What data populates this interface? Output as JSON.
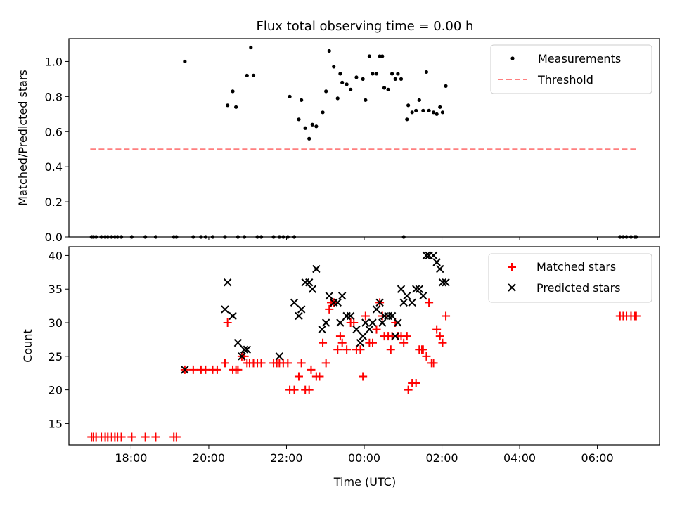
{
  "title": "Flux total observing time = 0.00 h",
  "chart_data": [
    {
      "type": "scatter",
      "ylabel": "Matched/Predicted stars",
      "ylim": [
        0,
        1.13
      ],
      "yticks": [
        "0.0",
        "0.2",
        "0.4",
        "0.6",
        "0.8",
        "1.0"
      ],
      "ytick_values": [
        0,
        0.2,
        0.4,
        0.6,
        0.8,
        1.0
      ],
      "legend_position": "top-right",
      "threshold": {
        "name": "Threshold",
        "value": 0.5,
        "x_start": "16:57",
        "x_end": "07:00",
        "color": "#ff7f7f"
      },
      "series": [
        {
          "name": "Measurements",
          "color": "#000000",
          "x": [
            "16:59",
            "17:02",
            "17:06",
            "17:14",
            "17:20",
            "17:24",
            "17:30",
            "17:35",
            "17:39",
            "17:45",
            "18:01",
            "18:22",
            "18:38",
            "19:06",
            "19:10",
            "19:23",
            "19:36",
            "19:48",
            "19:55",
            "20:06",
            "20:25",
            "20:29",
            "20:37",
            "20:42",
            "20:45",
            "20:55",
            "20:59",
            "21:05",
            "21:09",
            "21:15",
            "21:21",
            "21:40",
            "21:49",
            "21:55",
            "22:02",
            "22:05",
            "22:12",
            "22:19",
            "22:23",
            "22:29",
            "22:35",
            "22:40",
            "22:46",
            "22:56",
            "23:01",
            "23:06",
            "23:13",
            "23:19",
            "23:23",
            "23:26",
            "23:33",
            "23:39",
            "23:48",
            "23:58",
            "00:02",
            "00:08",
            "00:13",
            "00:19",
            "00:24",
            "00:28",
            "00:31",
            "00:37",
            "00:43",
            "00:48",
            "00:52",
            "00:57",
            "01:01",
            "01:06",
            "01:08",
            "01:14",
            "01:20",
            "01:25",
            "01:31",
            "01:36",
            "01:40",
            "01:47",
            "01:52",
            "01:57",
            "02:01",
            "02:06",
            "06:35",
            "06:40",
            "06:45",
            "06:52",
            "06:58",
            "07:00"
          ],
          "y": [
            0,
            0,
            0,
            0,
            0,
            0,
            0,
            0,
            0,
            0,
            0,
            0,
            0,
            0,
            0,
            1.0,
            0,
            0,
            0,
            0,
            0,
            0.75,
            0.83,
            0.74,
            0,
            0,
            0.92,
            1.08,
            0.92,
            0,
            0,
            0,
            0,
            0,
            0,
            0.8,
            0,
            0.67,
            0.78,
            0.62,
            0.56,
            0.64,
            0.63,
            0.71,
            0.83,
            1.06,
            0.97,
            0.79,
            0.93,
            0.88,
            0.87,
            0.84,
            0.91,
            0.9,
            0.78,
            1.03,
            0.93,
            0.93,
            1.03,
            1.03,
            0.85,
            0.84,
            0.93,
            0.9,
            0.93,
            0.9,
            0,
            0.67,
            0.75,
            0.71,
            0.72,
            0.78,
            0.72,
            0.94,
            0.72,
            0.71,
            0.7,
            0.74,
            0.71,
            0.86,
            0,
            0,
            0,
            0,
            0,
            0
          ]
        }
      ]
    },
    {
      "type": "scatter",
      "xlabel": "Time (UTC)",
      "ylabel": "Count",
      "ylim": [
        11.8,
        41.3
      ],
      "yticks": [
        "15",
        "20",
        "25",
        "30",
        "35",
        "40"
      ],
      "ytick_values": [
        15,
        20,
        25,
        30,
        35,
        40
      ],
      "xticks": [
        "18:00",
        "20:00",
        "22:00",
        "00:00",
        "02:00",
        "04:00",
        "06:00"
      ],
      "xlim": [
        "16:24",
        "07:36"
      ],
      "legend_position": "top-right",
      "series": [
        {
          "name": "Matched stars",
          "color": "#ff0000",
          "marker": "plus",
          "x": [
            "16:59",
            "17:02",
            "17:06",
            "17:14",
            "17:20",
            "17:24",
            "17:30",
            "17:35",
            "17:39",
            "17:45",
            "18:01",
            "18:22",
            "18:38",
            "19:06",
            "19:10",
            "19:23",
            "19:36",
            "19:48",
            "19:55",
            "20:06",
            "20:13",
            "20:25",
            "20:29",
            "20:37",
            "20:42",
            "20:45",
            "20:51",
            "20:55",
            "20:59",
            "21:03",
            "21:09",
            "21:15",
            "21:21",
            "21:40",
            "21:45",
            "21:49",
            "21:55",
            "22:02",
            "22:05",
            "22:12",
            "22:19",
            "22:23",
            "22:29",
            "22:35",
            "22:38",
            "22:46",
            "22:51",
            "22:56",
            "23:01",
            "23:06",
            "23:09",
            "23:13",
            "23:19",
            "23:23",
            "23:26",
            "23:33",
            "23:39",
            "23:44",
            "23:48",
            "23:54",
            "23:58",
            "00:02",
            "00:08",
            "00:13",
            "00:19",
            "00:24",
            "00:28",
            "00:31",
            "00:37",
            "00:41",
            "00:43",
            "00:48",
            "00:52",
            "00:57",
            "01:01",
            "01:06",
            "01:08",
            "01:14",
            "01:20",
            "01:25",
            "01:29",
            "01:31",
            "01:36",
            "01:40",
            "01:44",
            "01:47",
            "01:52",
            "01:57",
            "02:01",
            "02:06",
            "06:35",
            "06:40",
            "06:45",
            "06:52",
            "06:58",
            "07:00"
          ],
          "y": [
            13,
            13,
            13,
            13,
            13,
            13,
            13,
            13,
            13,
            13,
            13,
            13,
            13,
            13,
            13,
            23,
            23,
            23,
            23,
            23,
            23,
            24,
            30,
            23,
            23,
            23,
            25,
            25,
            24,
            24,
            24,
            24,
            24,
            24,
            24,
            24,
            24,
            24,
            20,
            20,
            22,
            24,
            20,
            20,
            23,
            22,
            22,
            27,
            24,
            32,
            33,
            33,
            26,
            28,
            27,
            26,
            30,
            30,
            26,
            26,
            22,
            31,
            27,
            27,
            29,
            33,
            31,
            28,
            28,
            26,
            28,
            30,
            28,
            28,
            27,
            28,
            20,
            21,
            21,
            26,
            26,
            26,
            25,
            33,
            24,
            24,
            29,
            28,
            27,
            31,
            31,
            31,
            31,
            31,
            31,
            31
          ]
        },
        {
          "name": "Predicted stars",
          "color": "#000000",
          "marker": "x",
          "x": [
            "19:23",
            "20:25",
            "20:29",
            "20:37",
            "20:45",
            "20:51",
            "20:55",
            "20:59",
            "21:49",
            "22:12",
            "22:19",
            "22:23",
            "22:29",
            "22:35",
            "22:40",
            "22:46",
            "22:55",
            "23:01",
            "23:06",
            "23:13",
            "23:19",
            "23:23",
            "23:26",
            "23:33",
            "23:39",
            "23:48",
            "23:54",
            "23:58",
            "00:02",
            "00:08",
            "00:13",
            "00:19",
            "00:24",
            "00:28",
            "00:31",
            "00:37",
            "00:43",
            "00:48",
            "00:52",
            "00:57",
            "01:01",
            "01:06",
            "01:14",
            "01:20",
            "01:25",
            "01:31",
            "01:36",
            "01:40",
            "01:47",
            "01:52",
            "01:57",
            "02:01",
            "02:06"
          ],
          "y": [
            23,
            32,
            36,
            31,
            27,
            25,
            26,
            26,
            25,
            33,
            31,
            32,
            36,
            36,
            35,
            38,
            29,
            30,
            34,
            33,
            33,
            30,
            34,
            31,
            31,
            29,
            27,
            28,
            30,
            29,
            30,
            32,
            33,
            30,
            31,
            31,
            31,
            28,
            30,
            35,
            33,
            34,
            33,
            35,
            35,
            34,
            40,
            40,
            40,
            39,
            38,
            36,
            36
          ]
        }
      ]
    }
  ]
}
